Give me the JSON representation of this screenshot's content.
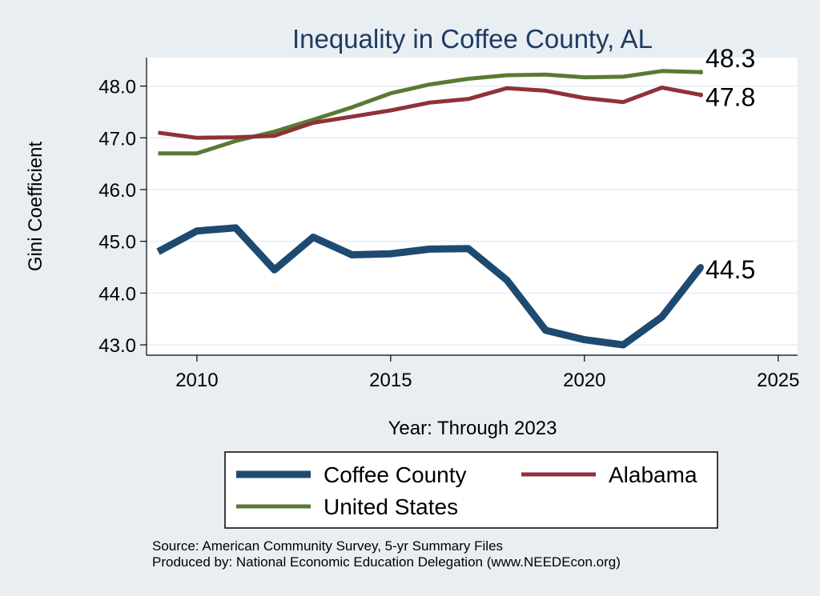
{
  "colors": {
    "background": "#e8eef2",
    "plot_background": "#ffffff",
    "title": "#1f3b63",
    "grid": "#e6eef4",
    "coffee": "#1e4a72",
    "alabama": "#8f3237",
    "us": "#587b34"
  },
  "chart_data": {
    "type": "line",
    "title": "Inequality in Coffee County, AL",
    "xlabel": "Year: Through 2023",
    "ylabel": "Gini Coefficient",
    "xlim": [
      2008.7,
      2025.5
    ],
    "ylim": [
      42.8,
      48.55
    ],
    "x_ticks": [
      2010,
      2015,
      2020,
      2025
    ],
    "x_tick_labels": [
      "2010",
      "2015",
      "2020",
      "2025"
    ],
    "y_ticks": [
      43,
      44,
      45,
      46,
      47,
      48
    ],
    "y_tick_labels": [
      "43.0",
      "44.0",
      "45.0",
      "46.0",
      "47.0",
      "48.0"
    ],
    "grid": true,
    "x": [
      2009,
      2010,
      2011,
      2012,
      2013,
      2014,
      2015,
      2016,
      2017,
      2018,
      2019,
      2020,
      2021,
      2022,
      2023
    ],
    "series": [
      {
        "name": "Coffee County",
        "key": "coffee",
        "values": [
          44.8,
          45.2,
          45.26,
          44.45,
          45.08,
          44.74,
          44.76,
          44.85,
          44.86,
          44.25,
          43.28,
          43.1,
          43.0,
          43.54,
          44.5
        ],
        "end_label": "44.5"
      },
      {
        "name": "Alabama",
        "key": "alabama",
        "values": [
          47.1,
          47.0,
          47.01,
          47.04,
          47.29,
          47.41,
          47.53,
          47.68,
          47.75,
          47.96,
          47.91,
          47.77,
          47.69,
          47.97,
          47.83
        ],
        "end_label": "47.8"
      },
      {
        "name": "United States",
        "key": "us",
        "values": [
          46.7,
          46.7,
          46.94,
          47.12,
          47.35,
          47.59,
          47.86,
          48.03,
          48.14,
          48.21,
          48.22,
          48.17,
          48.18,
          48.29,
          48.27
        ],
        "end_label": "48.3"
      }
    ],
    "legend": {
      "placement": "bottom",
      "entries": [
        "Coffee County",
        "Alabama",
        "United States"
      ]
    }
  },
  "source": {
    "line1": "Source: American Community Survey, 5-yr Summary Files",
    "line2": "Produced by: National Economic Education Delegation (www.NEEDEcon.org)"
  }
}
